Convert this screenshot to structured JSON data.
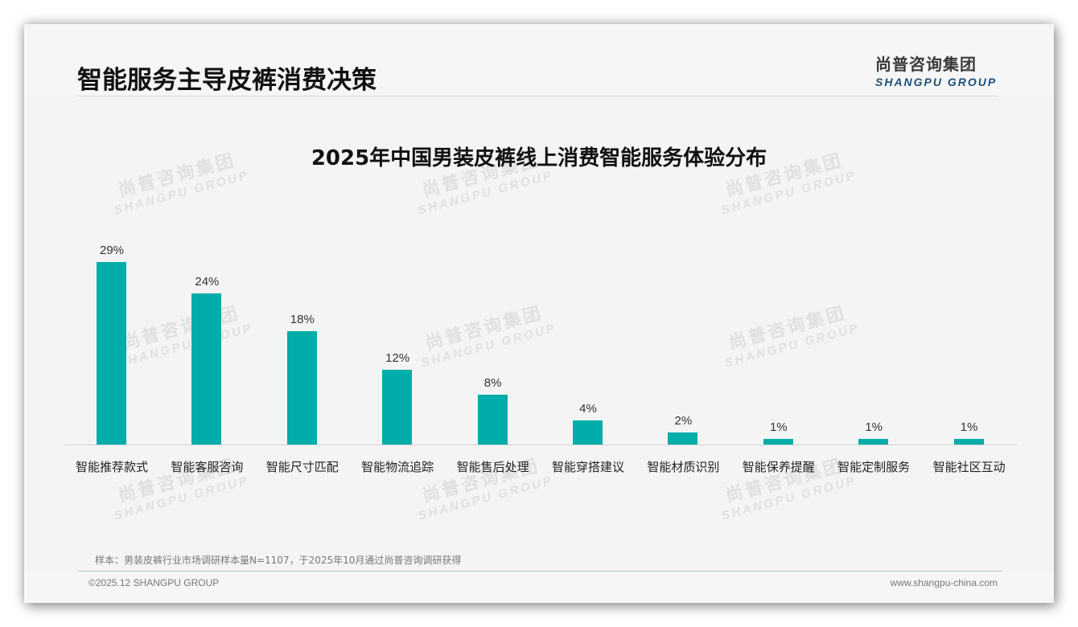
{
  "header": {
    "title": "智能服务主导皮裤消费决策",
    "logo_cn": "尚普咨询集团",
    "logo_en": "SHANGPU GROUP"
  },
  "watermark": {
    "cn": "尚普咨询集团",
    "en": "SHANGPU GROUP"
  },
  "chart_data": {
    "type": "bar",
    "title": "2025年中国男装皮裤线上消费智能服务体验分布",
    "xlabel": "",
    "ylabel": "",
    "categories": [
      "智能推荐款式",
      "智能客服咨询",
      "智能尺寸匹配",
      "智能物流追踪",
      "智能售后处理",
      "智能穿搭建议",
      "智能材质识别",
      "智能保养提醒",
      "智能定制服务",
      "智能社区互动"
    ],
    "values": [
      29,
      24,
      18,
      12,
      8,
      4,
      2,
      1,
      1,
      1
    ],
    "value_labels": [
      "29%",
      "24%",
      "18%",
      "12%",
      "8%",
      "4%",
      "2%",
      "1%",
      "1%",
      "1%"
    ],
    "unit": "%",
    "ylim": [
      0,
      30
    ],
    "grid": false,
    "legend": "none",
    "bar_color": "#00ada8"
  },
  "footer": {
    "note": "样本：男装皮裤行业市场调研样本量N=1107，于2025年10月通过尚普咨询调研获得",
    "copyright": "©2025.12 SHANGPU GROUP",
    "website": "www.shangpu-china.com"
  }
}
